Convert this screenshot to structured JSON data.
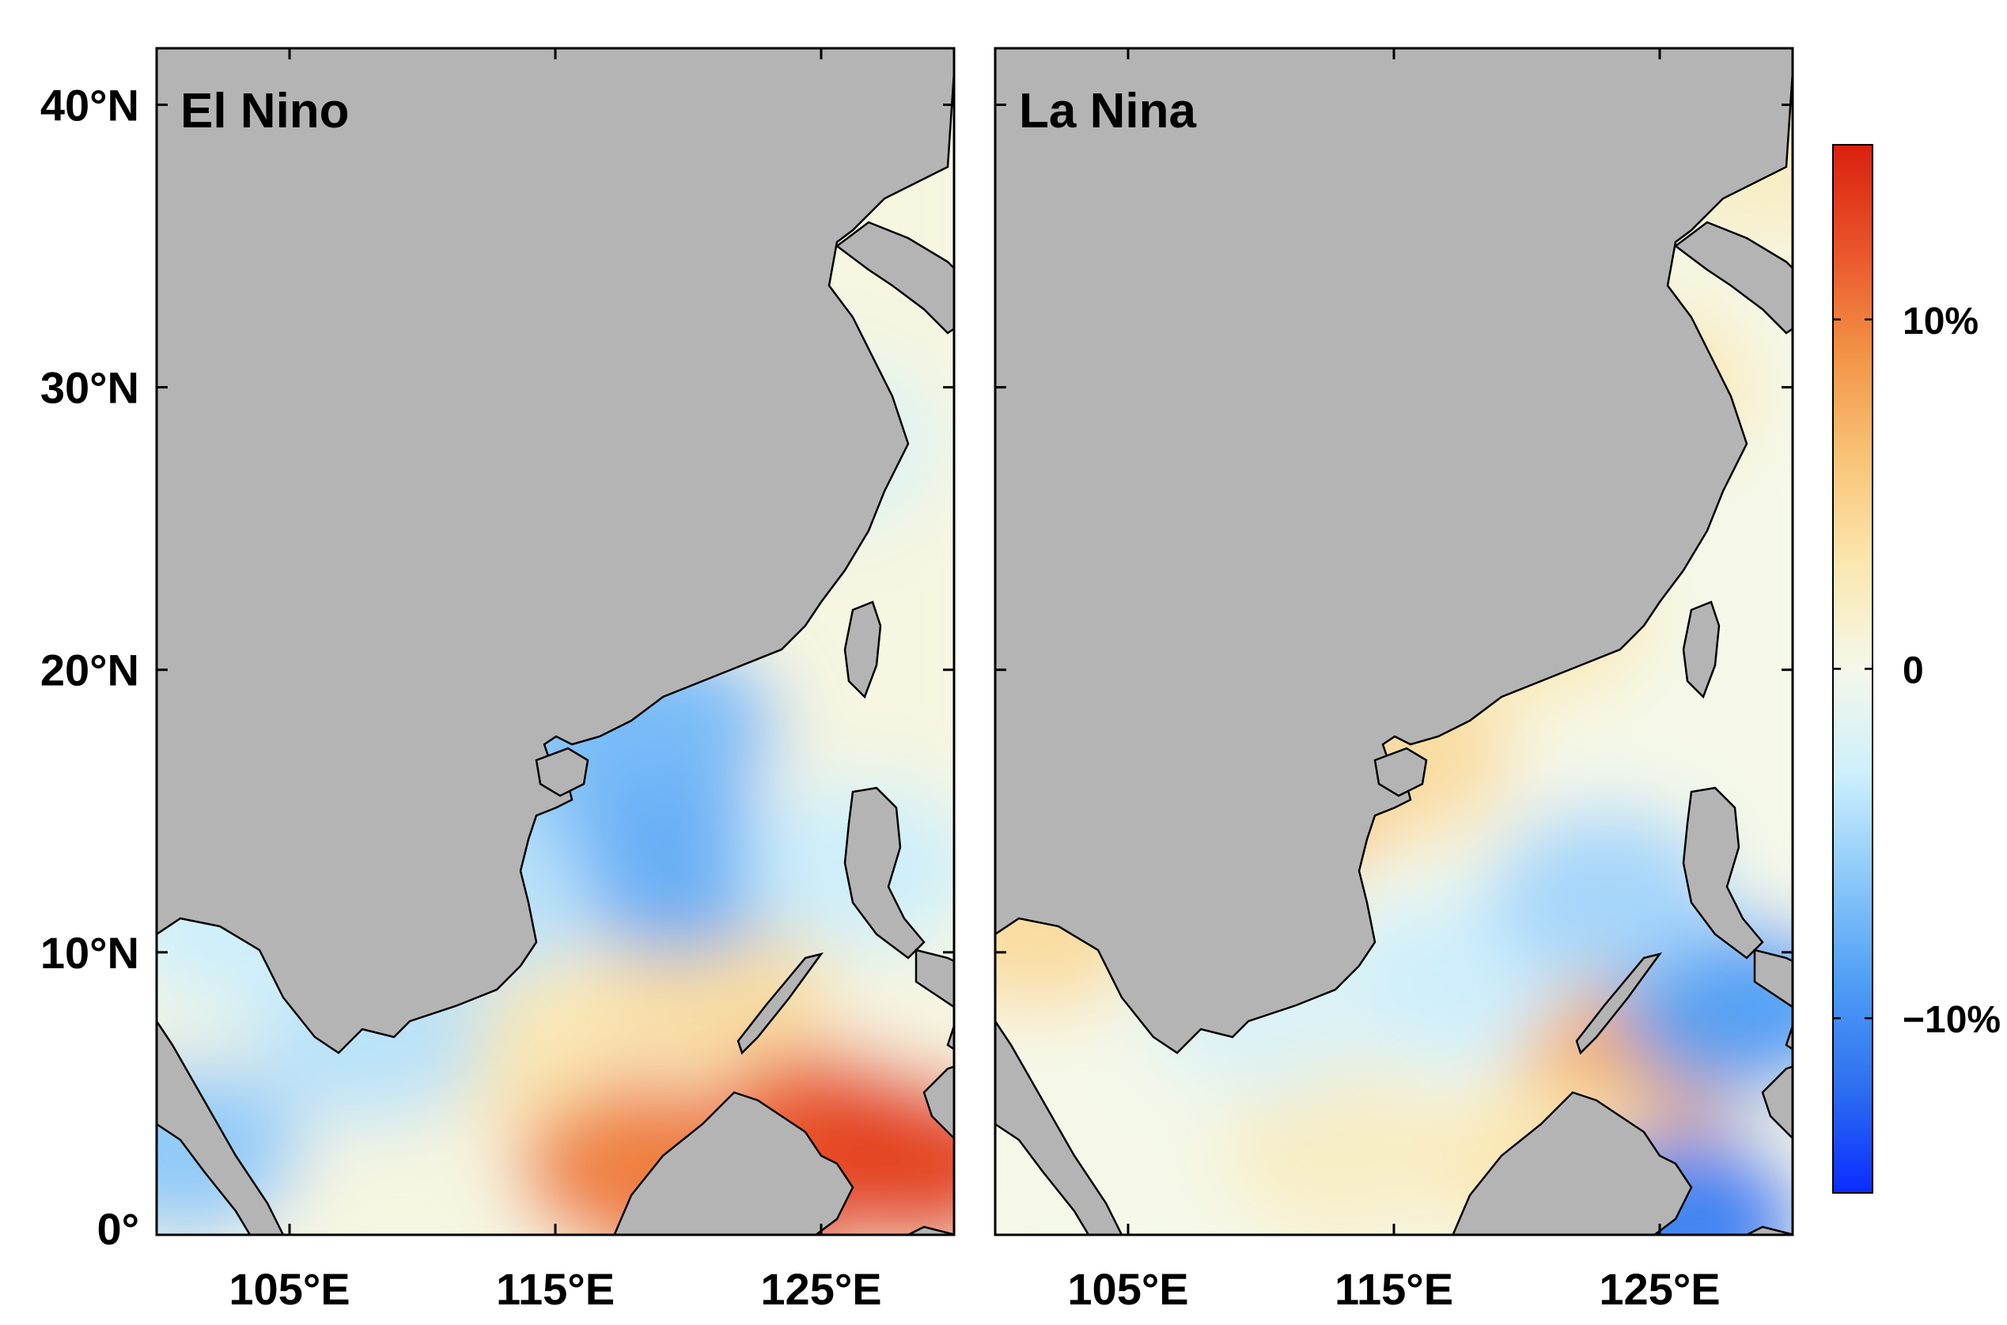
{
  "panels": [
    {
      "id": "el-nino",
      "label": "El Nino",
      "anomaly_spots": [
        {
          "lon": 121.5,
          "lat": 1.0,
          "value": 0.13
        },
        {
          "lon": 125.0,
          "lat": 3.5,
          "value": 0.12
        },
        {
          "lon": 118.0,
          "lat": 2.5,
          "value": 0.1
        },
        {
          "lon": 128.5,
          "lat": 2.5,
          "value": 0.13
        },
        {
          "lon": 113.0,
          "lat": 7.0,
          "value": 0.03
        },
        {
          "lon": 121.0,
          "lat": 9.0,
          "value": 0.04
        },
        {
          "lon": 109.0,
          "lat": 18.5,
          "value": 0.04
        },
        {
          "lon": 121.0,
          "lat": 39.5,
          "value": 0.02
        },
        {
          "lon": 116.0,
          "lat": 17.0,
          "value": -0.06
        },
        {
          "lon": 119.0,
          "lat": 18.0,
          "value": -0.07
        },
        {
          "lon": 119.5,
          "lat": 13.0,
          "value": -0.08
        },
        {
          "lon": 126.5,
          "lat": 13.0,
          "value": -0.03
        },
        {
          "lon": 108.0,
          "lat": 7.0,
          "value": -0.04
        },
        {
          "lon": 103.0,
          "lat": 11.0,
          "value": -0.03
        },
        {
          "lon": 101.0,
          "lat": 3.0,
          "value": -0.06
        },
        {
          "lon": 118.5,
          "lat": 27.0,
          "value": -0.02
        },
        {
          "lon": 125.0,
          "lat": 28.0,
          "value": -0.02
        },
        {
          "lon": 112.0,
          "lat": 12.0,
          "value": -0.04
        }
      ]
    },
    {
      "id": "la-nina",
      "label": "La Nina",
      "anomaly_spots": [
        {
          "lon": 115.0,
          "lat": 17.0,
          "value": 0.04
        },
        {
          "lon": 120.0,
          "lat": 22.0,
          "value": 0.03
        },
        {
          "lon": 110.0,
          "lat": 15.0,
          "value": 0.06
        },
        {
          "lon": 124.0,
          "lat": 30.0,
          "value": 0.03
        },
        {
          "lon": 129.0,
          "lat": 38.0,
          "value": 0.02
        },
        {
          "lon": 101.5,
          "lat": 11.0,
          "value": 0.04
        },
        {
          "lon": 124.0,
          "lat": 6.0,
          "value": 0.08
        },
        {
          "lon": 121.0,
          "lat": 2.5,
          "value": 0.03
        },
        {
          "lon": 113.0,
          "lat": 3.0,
          "value": 0.02
        },
        {
          "lon": 122.0,
          "lat": 39.5,
          "value": -0.02
        },
        {
          "lon": 108.8,
          "lat": 17.5,
          "value": -0.03
        },
        {
          "lon": 128.0,
          "lat": 8.0,
          "value": -0.09
        },
        {
          "lon": 126.0,
          "lat": 0.5,
          "value": -0.11
        },
        {
          "lon": 117.0,
          "lat": 9.0,
          "value": -0.03
        },
        {
          "lon": 123.0,
          "lat": 12.0,
          "value": -0.05
        },
        {
          "lon": 110.0,
          "lat": 8.0,
          "value": -0.02
        }
      ]
    }
  ],
  "y_ticks": [
    {
      "value": 0,
      "label": "0°"
    },
    {
      "value": 10,
      "label": "10°N"
    },
    {
      "value": 20,
      "label": "20°N"
    },
    {
      "value": 30,
      "label": "30°N"
    },
    {
      "value": 40,
      "label": "40°N"
    }
  ],
  "x_ticks": [
    {
      "value": 105,
      "label": "105°E"
    },
    {
      "value": 115,
      "label": "115°E"
    },
    {
      "value": 125,
      "label": "125°E"
    }
  ],
  "extent": {
    "lon": [
      100,
      130
    ],
    "lat": [
      0,
      42
    ]
  },
  "colorbar": {
    "range": [
      -0.15,
      0.15
    ],
    "ticks": [
      {
        "value": 0.1,
        "label": "10%"
      },
      {
        "value": 0.0,
        "label": "0"
      },
      {
        "value": -0.1,
        "label": "−10%"
      }
    ],
    "colors": [
      "#0a2cff",
      "#2e6ff0",
      "#4e9ef5",
      "#8cc8fa",
      "#cdeffc",
      "#f5f8e8",
      "#fbe7b0",
      "#f8c478",
      "#f29346",
      "#e9542a",
      "#d9200f"
    ]
  },
  "colors": {
    "land": "#b4b4b4",
    "coast": "#000000",
    "background": "#ffffff"
  }
}
